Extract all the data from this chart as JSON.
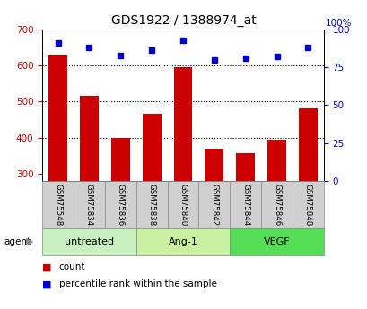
{
  "title": "GDS1922 / 1388974_at",
  "samples": [
    "GSM75548",
    "GSM75834",
    "GSM75836",
    "GSM75838",
    "GSM75840",
    "GSM75842",
    "GSM75844",
    "GSM75846",
    "GSM75848"
  ],
  "count_values": [
    630,
    515,
    400,
    465,
    595,
    368,
    357,
    393,
    482
  ],
  "percentile_values": [
    91,
    88,
    83,
    86,
    93,
    80,
    81,
    82,
    88
  ],
  "groups": [
    {
      "label": "untreated",
      "start": 0,
      "end": 3,
      "color": "#c8f0c0"
    },
    {
      "label": "Ang-1",
      "start": 3,
      "end": 6,
      "color": "#c8f0a0"
    },
    {
      "label": "VEGF",
      "start": 6,
      "end": 9,
      "color": "#55dd55"
    }
  ],
  "ylim_left": [
    280,
    700
  ],
  "ylim_right": [
    0,
    100
  ],
  "yticks_left": [
    300,
    400,
    500,
    600,
    700
  ],
  "yticks_right": [
    0,
    25,
    50,
    75,
    100
  ],
  "bar_color": "#cc0000",
  "dot_color": "#0000cc",
  "bar_width": 0.6,
  "grid_lines": [
    400,
    500,
    600
  ],
  "agent_label": "agent",
  "legend_count_label": "count",
  "legend_pct_label": "percentile rank within the sample",
  "left_tick_color": "#cc0000",
  "right_tick_color": "#0000cc",
  "right_top_label": "100%",
  "sample_box_color": "#d0d0d0",
  "fig_width": 4.1,
  "fig_height": 3.45,
  "dpi": 100
}
